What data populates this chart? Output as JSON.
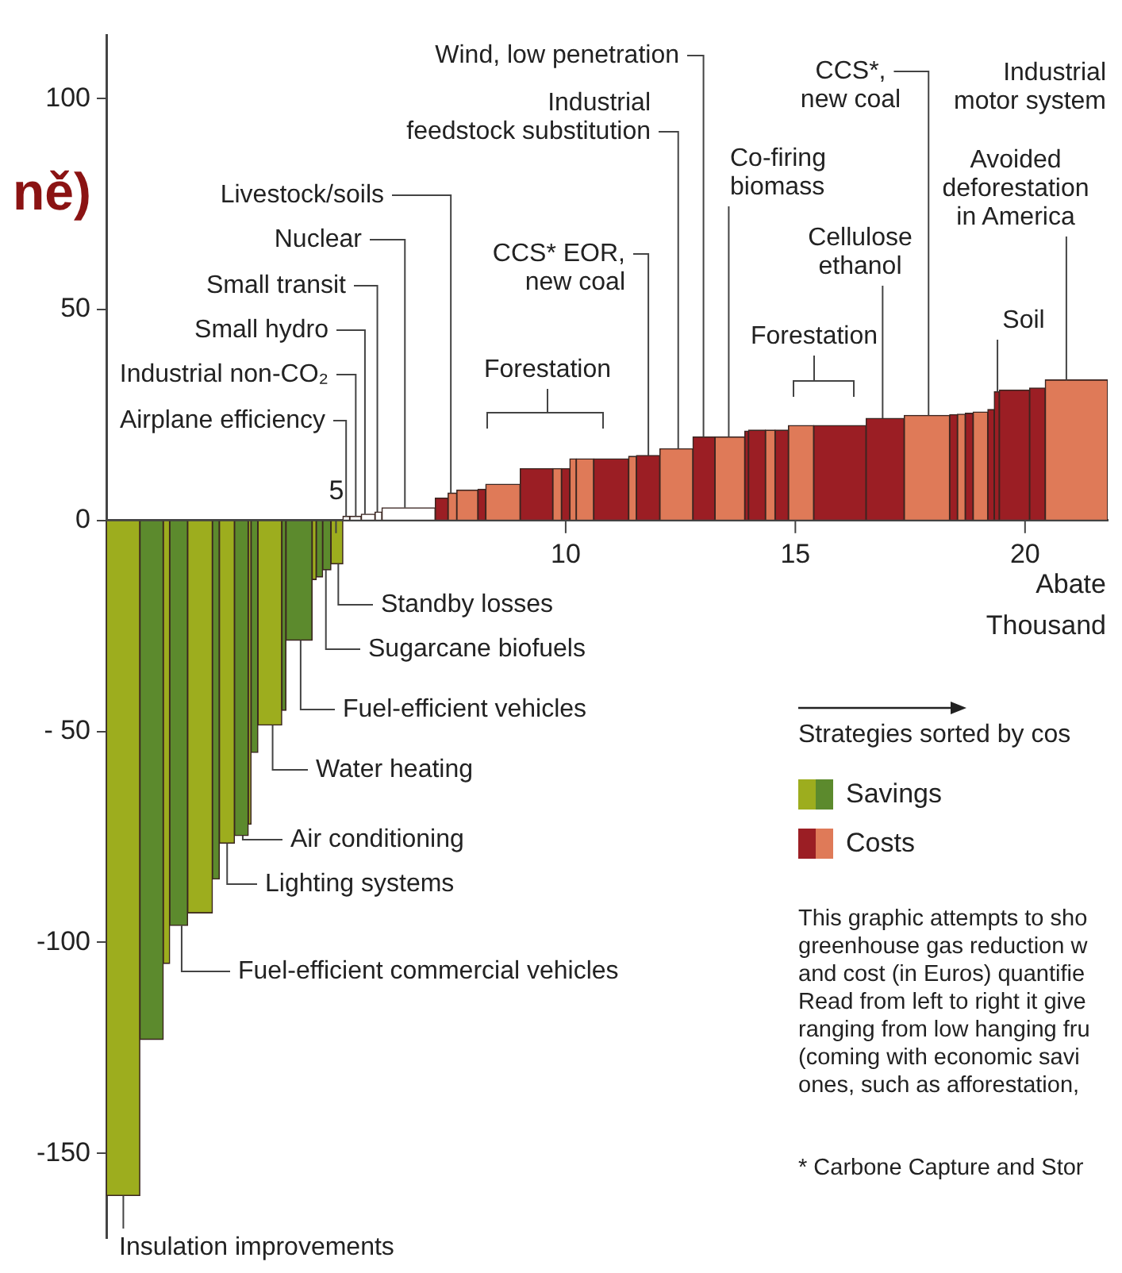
{
  "chart_data": {
    "type": "histogram",
    "title": "ně)",
    "xlabel": "Abate\nThousand",
    "bins": [
      0,
      0.73,
      1.24,
      1.38,
      1.77,
      2.31,
      2.46,
      2.79,
      3.09,
      3.15,
      3.3,
      3.82,
      3.91,
      4.48,
      4.57,
      4.71,
      4.89,
      5.15,
      5.3,
      5.55,
      5.85,
      6.0,
      7.16,
      7.44,
      7.63,
      8.09,
      8.26,
      9.01,
      9.72,
      9.91,
      10.09,
      10.23,
      10.61,
      11.37,
      11.54,
      12.05,
      12.77,
      13.25,
      13.9,
      13.98,
      14.35,
      14.56,
      14.85,
      15.4,
      16.54,
      17.37,
      18.36,
      18.53,
      18.7,
      18.87,
      19.19,
      19.33,
      19.44,
      20.1,
      20.44,
      21.8
    ],
    "series": [
      {
        "name": "Savings",
        "values": [
          -160,
          -123,
          -105,
          -96,
          -93,
          -85,
          -76.5,
          -74.7,
          -72,
          -55,
          -48.5,
          -45,
          -28.4,
          -14,
          -13.4,
          -11.7,
          -10.3,
          null,
          null,
          null,
          null,
          null,
          null,
          null,
          null,
          null,
          null,
          null,
          null,
          null,
          null,
          null,
          null,
          null,
          null,
          null,
          null,
          null,
          null,
          null,
          null,
          null,
          null,
          null,
          null,
          null,
          null,
          null,
          null,
          null,
          null,
          null,
          null,
          null,
          null
        ],
        "colors": [
          "#9dad1e",
          "#5c8a2d",
          "#9dad1e",
          "#5c8a2d",
          "#9dad1e",
          "#5c8a2d",
          "#9dad1e",
          "#5c8a2d",
          "#9dad1e",
          "#5c8a2d",
          "#9dad1e",
          "#5c8a2d",
          "#5c8a2d",
          "#9dad1e",
          "#5c8a2d",
          "#5c8a2d",
          "#9dad1e",
          null,
          null,
          null,
          null,
          null,
          null,
          null,
          null,
          null,
          null,
          null,
          null,
          null,
          null,
          null,
          null,
          null,
          null,
          null,
          null,
          null,
          null,
          null,
          null,
          null,
          null,
          null,
          null,
          null,
          null,
          null,
          null,
          null,
          null,
          null,
          null,
          null,
          null
        ]
      },
      {
        "values": [
          null,
          null,
          null,
          null,
          null,
          null,
          null,
          null,
          null,
          null,
          null,
          null,
          null,
          null,
          null,
          null,
          null,
          1,
          1,
          1.5,
          2,
          3,
          null,
          null,
          null,
          null,
          null,
          null,
          null,
          null,
          null,
          null,
          null,
          null,
          null,
          null,
          null,
          null,
          null,
          null,
          null,
          null,
          null,
          null,
          null,
          null,
          null,
          null,
          null,
          null,
          null,
          null,
          null,
          null,
          null
        ],
        "color": "#ffffff"
      },
      {
        "name": "Costs",
        "values": [
          null,
          null,
          null,
          null,
          null,
          null,
          null,
          null,
          null,
          null,
          null,
          null,
          null,
          null,
          null,
          null,
          null,
          null,
          null,
          null,
          null,
          null,
          5.3,
          6.5,
          7.2,
          7.4,
          8.6,
          12.3,
          12.3,
          12.3,
          14.6,
          14.6,
          14.6,
          15.2,
          15.4,
          17,
          19.8,
          19.8,
          21.2,
          21.4,
          21.4,
          21.4,
          22.5,
          22.5,
          24.2,
          24.9,
          25.1,
          25.2,
          25.4,
          25.7,
          26.3,
          30.5,
          30.9,
          31.4,
          33.3
        ],
        "colors": [
          null,
          null,
          null,
          null,
          null,
          null,
          null,
          null,
          null,
          null,
          null,
          null,
          null,
          null,
          null,
          null,
          null,
          null,
          null,
          null,
          null,
          null,
          "#9b1e24",
          "#df7a58",
          "#df7a58",
          "#9b1e24",
          "#df7a58",
          "#9b1e24",
          "#df7a58",
          "#9b1e24",
          "#df7a58",
          "#df7a58",
          "#9b1e24",
          "#df7a58",
          "#9b1e24",
          "#df7a58",
          "#9b1e24",
          "#df7a58",
          "#9b1e24",
          "#9b1e24",
          "#df7a58",
          "#9b1e24",
          "#df7a58",
          "#9b1e24",
          "#9b1e24",
          "#df7a58",
          "#9b1e24",
          "#df7a58",
          "#9b1e24",
          "#df7a58",
          "#9b1e24",
          "#9b1e24",
          "#9b1e24",
          "#9b1e24",
          "#df7a58"
        ]
      }
    ],
    "xlim": [
      0,
      21.8
    ],
    "xticks": [
      {
        "value": 5,
        "label": null
      },
      10,
      15,
      20
    ],
    "ylim": [
      -170,
      115
    ],
    "yticks": [
      100,
      50,
      0,
      {
        "value": -50,
        "label": "- 50"
      },
      -100,
      -150
    ],
    "legend": "right",
    "annotations": [
      {
        "text": "Airplane efficiency",
        "x": 5.22,
        "y": 1
      },
      {
        "text": "Industrial non-CO₂",
        "x": 5.43,
        "y": 1
      },
      {
        "text": "Small hydro",
        "x": 5.63,
        "y": 1.5
      },
      {
        "text": "Small transit",
        "x": 5.9,
        "y": 2
      },
      {
        "text": "Nuclear",
        "x": 6.5,
        "y": 3
      },
      {
        "text": "Livestock/soils",
        "x": 7.5,
        "y": 6.5
      },
      {
        "text": "CCS* EOR,\nnew coal",
        "x": 11.8,
        "y": 15.4
      },
      {
        "text": "Industrial\nfeedstock substitution",
        "x": 12.45,
        "y": 17
      },
      {
        "text": "Wind, low penetration",
        "x": 13.0,
        "y": 19.8
      },
      {
        "text": "Co-firing\nbiomass",
        "x": 13.55,
        "y": 19.8
      },
      {
        "text": "Cellulose\nethanol",
        "x": 16.9,
        "y": 24.2
      },
      {
        "text": "CCS*,\nnew coal",
        "x": 17.9,
        "y": 24.9
      },
      {
        "text": "Soil",
        "x": 19.4,
        "y": 30.5
      },
      {
        "text": "Avoided\ndeforestation\nin America",
        "x": 20.9,
        "y": 33.3
      },
      {
        "text": "Standby losses",
        "x": 5.05,
        "y": -10.3
      },
      {
        "text": "Sugarcane biofuels",
        "x": 4.78,
        "y": -11.7
      },
      {
        "text": "Fuel-efficient vehicles",
        "x": 4.23,
        "y": -28.4
      },
      {
        "text": "Water heating",
        "x": 3.62,
        "y": -48.5
      },
      {
        "text": "Air conditioning",
        "x": 2.97,
        "y": -74.7
      },
      {
        "text": "Lighting systems",
        "x": 2.63,
        "y": -76.5
      },
      {
        "text": "Fuel-efficient commercial vehicles",
        "x": 1.64,
        "y": -96
      },
      {
        "text": "Insulation improvements",
        "x": 0.37,
        "y": -160
      },
      "Forestation",
      "Forestation",
      "Industrial\nmotor system",
      "Strategies sorted by cos",
      "This graphic attempts to sho\ngreenhouse gas reduction w\nand cost (in Euros) quantifie\nRead from left to right it give\nranging from low hanging fru\n(coming with economic savi\nones, such as afforestation,",
      "* Carbone Capture and Stor",
      "5"
    ]
  }
}
